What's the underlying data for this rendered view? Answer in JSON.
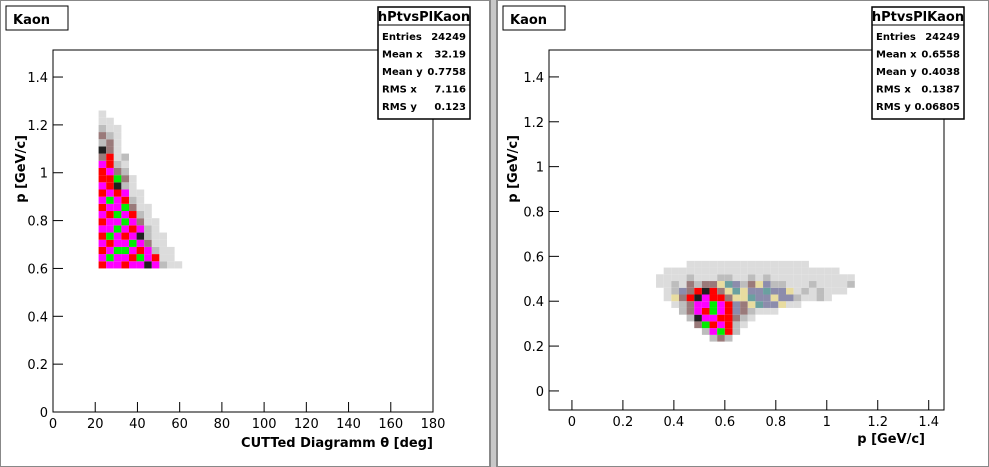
{
  "chart_data": [
    {
      "type": "heatmap",
      "title": "Kaon",
      "stats_title": "hPtvsPlKaon",
      "stats": [
        {
          "label": "Entries",
          "value": 24249
        },
        {
          "label": "Mean x",
          "value": 32.19
        },
        {
          "label": "Mean y",
          "value": 0.7758
        },
        {
          "label": "RMS x",
          "value": 7.116
        },
        {
          "label": "RMS y",
          "value": 0.123
        }
      ],
      "xlabel": "CUTTed Diagramm  θ [deg]",
      "ylabel": "p [GeV/c]",
      "xlim": [
        0,
        180
      ],
      "ylim": [
        0,
        1.513
      ],
      "xticks": [
        0,
        20,
        40,
        60,
        80,
        100,
        120,
        140,
        160,
        180
      ],
      "yticks": [
        0,
        0.2,
        0.4,
        0.6,
        0.8,
        1,
        1.2,
        1.4
      ],
      "binx": 3.6,
      "biny": 0.03,
      "palette": [
        "#dcdcdc",
        "#bdbdbd",
        "#9a7a7a",
        "#202020",
        "#ff0000",
        "#ff00ff",
        "#00ee00",
        "#e8dca0",
        "#8c8cac",
        "#6aa0a0"
      ],
      "rows": [
        {
          "y": 0.6,
          "x0": 21.6,
          "levels": [
            4,
            5,
            5,
            4,
            5,
            5,
            3,
            5,
            1,
            0,
            0
          ]
        },
        {
          "y": 0.63,
          "x0": 21.6,
          "levels": [
            5,
            6,
            5,
            5,
            4,
            6,
            5,
            4,
            0,
            0
          ]
        },
        {
          "y": 0.66,
          "x0": 21.6,
          "levels": [
            4,
            5,
            6,
            6,
            5,
            4,
            5,
            1,
            0,
            0
          ]
        },
        {
          "y": 0.69,
          "x0": 21.6,
          "levels": [
            5,
            4,
            5,
            5,
            6,
            5,
            2,
            0,
            0
          ]
        },
        {
          "y": 0.72,
          "x0": 21.6,
          "levels": [
            4,
            6,
            5,
            4,
            5,
            3,
            1,
            0,
            0
          ]
        },
        {
          "y": 0.75,
          "x0": 21.6,
          "levels": [
            5,
            5,
            6,
            5,
            4,
            5,
            1,
            0
          ]
        },
        {
          "y": 0.78,
          "x0": 21.6,
          "levels": [
            4,
            5,
            5,
            6,
            5,
            2,
            0,
            0
          ]
        },
        {
          "y": 0.81,
          "x0": 21.6,
          "levels": [
            5,
            4,
            6,
            5,
            4,
            1,
            0
          ]
        },
        {
          "y": 0.84,
          "x0": 21.6,
          "levels": [
            4,
            5,
            5,
            6,
            2,
            0,
            0
          ]
        },
        {
          "y": 0.87,
          "x0": 21.6,
          "levels": [
            5,
            6,
            5,
            4,
            1,
            0
          ]
        },
        {
          "y": 0.9,
          "x0": 21.6,
          "levels": [
            4,
            5,
            4,
            5,
            0,
            0
          ]
        },
        {
          "y": 0.93,
          "x0": 21.6,
          "levels": [
            5,
            4,
            3,
            1,
            0
          ]
        },
        {
          "y": 0.96,
          "x0": 21.6,
          "levels": [
            4,
            4,
            6,
            2,
            0
          ]
        },
        {
          "y": 0.99,
          "x0": 21.6,
          "levels": [
            4,
            5,
            2,
            1
          ]
        },
        {
          "y": 1.02,
          "x0": 21.6,
          "levels": [
            5,
            4,
            1,
            0
          ]
        },
        {
          "y": 1.05,
          "x0": 21.6,
          "levels": [
            2,
            4,
            0,
            1
          ]
        },
        {
          "y": 1.08,
          "x0": 21.6,
          "levels": [
            3,
            2,
            0
          ]
        },
        {
          "y": 1.11,
          "x0": 21.6,
          "levels": [
            1,
            2,
            0
          ]
        },
        {
          "y": 1.14,
          "x0": 21.6,
          "levels": [
            2,
            1,
            0
          ]
        },
        {
          "y": 1.17,
          "x0": 21.6,
          "levels": [
            1,
            0,
            0
          ]
        },
        {
          "y": 1.2,
          "x0": 21.6,
          "levels": [
            0,
            0
          ]
        },
        {
          "y": 1.23,
          "x0": 21.6,
          "levels": [
            0
          ]
        }
      ]
    },
    {
      "type": "heatmap",
      "title": "Kaon",
      "stats_title": "hPtvsPlKaon",
      "stats": [
        {
          "label": "Entries",
          "value": 24249
        },
        {
          "label": "Mean x",
          "value": 0.6558
        },
        {
          "label": "Mean y",
          "value": 0.4038
        },
        {
          "label": "RMS x",
          "value": 0.1387
        },
        {
          "label": "RMS y",
          "value": 0.06805
        }
      ],
      "xlabel": "p  [GeV/c]",
      "ylabel": "p [GeV/c]",
      "xlim": [
        -0.09,
        1.46
      ],
      "ylim": [
        -0.085,
        1.52
      ],
      "xticks": [
        0,
        0.2,
        0.4,
        0.6,
        0.8,
        1,
        1.2,
        1.4
      ],
      "yticks": [
        0,
        0.2,
        0.4,
        0.6,
        0.8,
        1,
        1.2,
        1.4
      ],
      "binx": 0.03,
      "biny": 0.03,
      "palette": [
        "#dcdcdc",
        "#bdbdbd",
        "#9a7a7a",
        "#202020",
        "#ff0000",
        "#ff00ff",
        "#00ee00",
        "#e8dca0",
        "#8c8cac",
        "#6aa0a0"
      ],
      "rows": [
        {
          "y": 0.22,
          "x0": 0.54,
          "levels": [
            1,
            2,
            1
          ]
        },
        {
          "y": 0.25,
          "x0": 0.51,
          "levels": [
            1,
            5,
            6,
            4,
            1
          ]
        },
        {
          "y": 0.28,
          "x0": 0.48,
          "levels": [
            2,
            6,
            4,
            5,
            4,
            1,
            0
          ]
        },
        {
          "y": 0.31,
          "x0": 0.45,
          "levels": [
            1,
            3,
            5,
            5,
            4,
            4,
            2,
            1,
            0
          ]
        },
        {
          "y": 0.34,
          "x0": 0.42,
          "levels": [
            1,
            2,
            5,
            4,
            6,
            5,
            4,
            8,
            2,
            1,
            0,
            0,
            0
          ]
        },
        {
          "y": 0.37,
          "x0": 0.39,
          "levels": [
            0,
            1,
            2,
            5,
            5,
            6,
            5,
            4,
            8,
            2,
            7,
            9,
            8,
            8,
            7,
            0,
            0
          ]
        },
        {
          "y": 0.4,
          "x0": 0.36,
          "levels": [
            0,
            7,
            2,
            4,
            3,
            5,
            4,
            4,
            2,
            7,
            7,
            9,
            8,
            8,
            7,
            8,
            8,
            1,
            0,
            0,
            1,
            0
          ]
        },
        {
          "y": 0.43,
          "x0": 0.36,
          "levels": [
            0,
            1,
            8,
            2,
            4,
            3,
            4,
            2,
            7,
            9,
            7,
            8,
            8,
            9,
            8,
            8,
            7,
            0,
            1,
            0,
            1,
            0,
            0,
            0
          ]
        },
        {
          "y": 0.46,
          "x0": 0.33,
          "levels": [
            0,
            0,
            1,
            0,
            2,
            1,
            2,
            2,
            7,
            9,
            8,
            1,
            2,
            7,
            8,
            1,
            1,
            0,
            0,
            0,
            1,
            0,
            0,
            0,
            0,
            1
          ]
        },
        {
          "y": 0.49,
          "x0": 0.33,
          "levels": [
            0,
            0,
            0,
            0,
            1,
            0,
            0,
            0,
            1,
            1,
            0,
            0,
            1,
            0,
            1,
            0,
            0,
            0,
            0,
            0,
            0,
            0,
            0,
            0,
            0,
            0
          ]
        },
        {
          "y": 0.52,
          "x0": 0.36,
          "levels": [
            0,
            0,
            0,
            0,
            0,
            0,
            0,
            0,
            0,
            0,
            0,
            0,
            0,
            0,
            0,
            0,
            0,
            0,
            0,
            0,
            0,
            0,
            0
          ]
        },
        {
          "y": 0.55,
          "x0": 0.45,
          "levels": [
            0,
            0,
            0,
            0,
            0,
            0,
            0,
            0,
            0,
            0,
            0,
            0,
            0,
            0,
            0,
            0
          ]
        }
      ]
    }
  ]
}
